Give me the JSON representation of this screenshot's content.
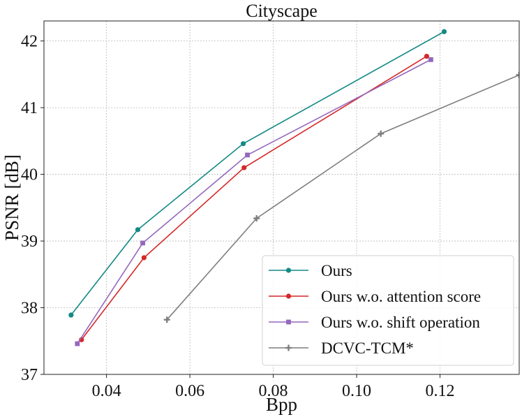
{
  "chart_data": {
    "type": "line",
    "title": "Cityscape",
    "xlabel": "Bpp",
    "ylabel": "PSNR [dB]",
    "xlim": [
      0.025,
      0.139
    ],
    "ylim": [
      37,
      42.3
    ],
    "xticks": [
      0.04,
      0.06,
      0.08,
      0.1,
      0.12
    ],
    "xtick_labels": [
      "0.04",
      "0.06",
      "0.08",
      "0.10",
      "0.12"
    ],
    "yticks": [
      37,
      38,
      39,
      40,
      41,
      42
    ],
    "ytick_labels": [
      "37",
      "38",
      "39",
      "40",
      "41",
      "42"
    ],
    "grid": true,
    "legend_position": "lower-right",
    "series": [
      {
        "name": "Ours",
        "color": "#138a85",
        "marker": "circle",
        "x": [
          0.0315,
          0.0475,
          0.0728,
          0.121
        ],
        "y": [
          37.89,
          39.17,
          40.46,
          42.14
        ]
      },
      {
        "name": "Ours w.o. attention score",
        "color": "#d62728",
        "marker": "circle",
        "x": [
          0.034,
          0.049,
          0.073,
          0.1168
        ],
        "y": [
          37.52,
          38.75,
          40.1,
          41.77
        ]
      },
      {
        "name": "Ours w.o. shift operation",
        "color": "#9467bd",
        "marker": "square",
        "x": [
          0.033,
          0.0487,
          0.0738,
          0.1178
        ],
        "y": [
          37.46,
          38.97,
          40.29,
          41.72
        ]
      },
      {
        "name": "DCVC-TCM*",
        "color": "#7f7f7f",
        "marker": "plus",
        "x": [
          0.0545,
          0.076,
          0.1058,
          0.139
        ],
        "y": [
          37.82,
          39.34,
          40.61,
          41.49
        ]
      }
    ]
  }
}
